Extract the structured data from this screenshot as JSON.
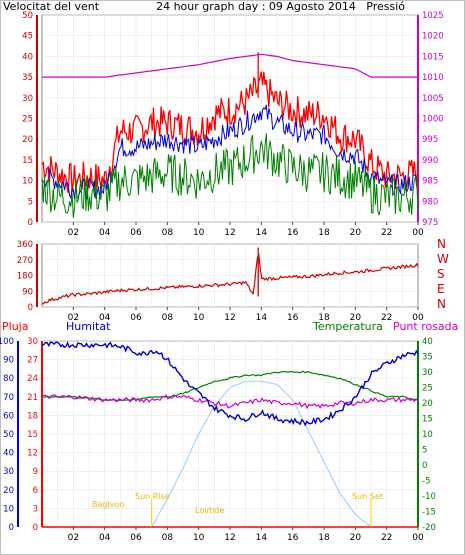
{
  "colors": {
    "wind": "#ff0000",
    "gust": "#ff0000",
    "avgwind": "#0000cc",
    "minwind": "#008000",
    "pressure": "#cc00cc",
    "direction": "#cc0000",
    "humidity": "#0000cc",
    "temperature": "#008000",
    "dewpoint": "#cc00cc",
    "rain": "#ff0000",
    "solar": "#99ccff",
    "events": "#ffcc00",
    "plot_bg": "#ffffff",
    "grid": "#e6e6e6"
  },
  "header": {
    "left": "Velocitat del vent",
    "center": "24 hour graph day : 09 Agosto 2014",
    "right": "Pressió"
  },
  "panel3_header": {
    "rain": "Pluja",
    "humidity": "Humitat",
    "temperature": "Temperatura",
    "dewpoint": "Punt rosada"
  },
  "compass": [
    "N",
    "W",
    "S",
    "E",
    "N"
  ],
  "events": {
    "dawn": "Baglvoo",
    "sunrise": "Sun Rise",
    "moonrise": "Lovtide",
    "sunset": "Sun Set"
  },
  "chart_data": [
    {
      "type": "line",
      "x_ticks": [
        "02",
        "04",
        "06",
        "08",
        "10",
        "12",
        "14",
        "16",
        "18",
        "20",
        "22",
        "00"
      ],
      "xlim": [
        0,
        24
      ],
      "y_left": {
        "ticks": [
          0,
          5,
          10,
          15,
          20,
          25,
          30,
          35,
          40,
          45,
          50
        ],
        "ylim": [
          0,
          50
        ]
      },
      "y_right": {
        "ticks": [
          975,
          980,
          985,
          990,
          995,
          1000,
          1005,
          1010,
          1015,
          1020,
          1025
        ],
        "ylim": [
          975,
          1025
        ]
      },
      "series": [
        {
          "axis": "right",
          "x": [
            0,
            2,
            4,
            6,
            8,
            10,
            12,
            13,
            14,
            15,
            16,
            18,
            20,
            21,
            22,
            24
          ],
          "values": [
            1010,
            1010,
            1010,
            1011,
            1012,
            1013,
            1014.5,
            1015,
            1015.5,
            1015,
            1014,
            1013,
            1012,
            1010,
            1010,
            1010
          ]
        },
        {
          "x": [
            0,
            1,
            2,
            3,
            4,
            5,
            6,
            7,
            8,
            9,
            10,
            11,
            12,
            13,
            14,
            15,
            16,
            17,
            18,
            19,
            20,
            21,
            22,
            23,
            24
          ],
          "values": [
            14,
            12,
            10,
            11,
            10,
            22,
            22,
            24,
            24,
            23,
            22,
            26,
            27,
            29,
            33,
            29,
            27,
            26,
            26,
            21,
            20,
            14,
            11,
            11,
            12
          ]
        },
        {
          "x": [
            0,
            1,
            2,
            3,
            4,
            5,
            6,
            7,
            8,
            9,
            10,
            11,
            12,
            13,
            14,
            15,
            16,
            17,
            18,
            19,
            20,
            21,
            22,
            23,
            24
          ],
          "values": [
            11,
            10,
            8,
            8,
            8,
            18,
            18,
            19,
            20,
            19,
            18,
            20,
            22,
            24,
            27,
            24,
            22,
            21,
            21,
            17,
            16,
            11,
            9,
            9,
            10
          ]
        },
        {
          "x": [
            0,
            1,
            2,
            3,
            4,
            5,
            6,
            7,
            8,
            9,
            10,
            11,
            12,
            13,
            14,
            15,
            16,
            17,
            18,
            19,
            20,
            21,
            22,
            23,
            24
          ],
          "values": [
            9,
            6,
            6,
            7,
            6,
            10,
            10,
            11,
            12,
            11,
            10,
            12,
            13,
            15,
            18,
            15,
            13,
            12,
            12,
            11,
            10,
            7,
            6,
            6,
            7
          ]
        }
      ]
    },
    {
      "type": "line",
      "x_ticks": [
        "02",
        "04",
        "06",
        "08",
        "10",
        "12",
        "14",
        "16",
        "18",
        "20",
        "22",
        "00"
      ],
      "xlim": [
        0,
        24
      ],
      "y_left": {
        "ticks": [
          0,
          90,
          180,
          270,
          360
        ],
        "ylim": [
          0,
          360
        ]
      },
      "series": [
        {
          "x": [
            0,
            0.5,
            1,
            2,
            3,
            4,
            5,
            6,
            7,
            8,
            9,
            10,
            11,
            12,
            13,
            13.5,
            13.8,
            14,
            15,
            16,
            17,
            18,
            19,
            20,
            21,
            22,
            23,
            24
          ],
          "values": [
            20,
            40,
            50,
            70,
            75,
            85,
            95,
            100,
            105,
            110,
            115,
            120,
            125,
            130,
            140,
            70,
            330,
            160,
            165,
            170,
            175,
            185,
            195,
            200,
            210,
            220,
            230,
            240
          ]
        }
      ]
    },
    {
      "type": "line",
      "x_ticks": [
        "02",
        "04",
        "06",
        "08",
        "10",
        "12",
        "14",
        "16",
        "18",
        "20",
        "22",
        "00"
      ],
      "xlim": [
        0,
        24
      ],
      "y_rain": {
        "ticks": [
          0,
          3,
          6,
          9,
          12,
          15,
          18,
          21,
          24,
          27,
          30
        ],
        "ylim": [
          0,
          30
        ]
      },
      "y_hum": {
        "ticks": [
          0,
          10,
          20,
          30,
          40,
          50,
          60,
          70,
          80,
          90,
          100
        ],
        "ylim": [
          0,
          100
        ]
      },
      "y_temp": {
        "ticks": [
          -20,
          -15,
          -10,
          -5,
          0,
          5,
          10,
          15,
          20,
          25,
          30,
          35,
          40
        ],
        "ylim": [
          -20,
          40
        ]
      },
      "series": [
        {
          "axis": "humidity",
          "x": [
            0,
            2,
            4,
            5,
            6,
            6.5,
            7,
            7.5,
            8,
            8.5,
            9,
            9.5,
            10,
            11,
            12,
            13,
            14,
            15,
            16,
            17,
            18,
            18.5,
            19,
            19.5,
            20,
            20.5,
            21,
            22,
            23,
            24
          ],
          "values": [
            98,
            98,
            98,
            97,
            94,
            93,
            95,
            94,
            90,
            85,
            80,
            75,
            72,
            64,
            60,
            58,
            62,
            58,
            57,
            56,
            58,
            60,
            63,
            66,
            70,
            76,
            82,
            88,
            92,
            94
          ]
        },
        {
          "axis": "temperature",
          "x": [
            0,
            2,
            4,
            6,
            7,
            8,
            9,
            10,
            11,
            12,
            13,
            14,
            15,
            16,
            17,
            18,
            19,
            20,
            21,
            22,
            23,
            24
          ],
          "values": [
            22,
            22,
            21,
            21,
            22,
            22,
            23,
            25,
            27,
            28,
            29,
            29,
            30,
            30,
            30,
            29,
            28,
            26,
            24,
            22,
            22,
            21
          ]
        },
        {
          "axis": "temperature",
          "x": [
            0,
            2,
            4,
            6,
            7,
            8,
            9,
            10,
            11,
            12,
            13,
            14,
            15,
            16,
            17,
            18,
            19,
            20,
            21,
            22,
            23,
            24
          ],
          "values": [
            22,
            22,
            21,
            21,
            21,
            22,
            22,
            21,
            20,
            19,
            20,
            21,
            20,
            20,
            19,
            19,
            20,
            20,
            21,
            21,
            21,
            21
          ]
        },
        {
          "axis": "temperature",
          "x": [
            7,
            8,
            9,
            10,
            11,
            12,
            13,
            14,
            15,
            16,
            17,
            18,
            19,
            20,
            21
          ],
          "values": [
            -20,
            -11,
            -1,
            10,
            19,
            25,
            27,
            27,
            26,
            21,
            11,
            1,
            -9,
            -16,
            -20
          ]
        },
        {
          "axis": "rain",
          "x": [
            0,
            24
          ],
          "values": [
            0,
            0
          ]
        }
      ]
    }
  ]
}
